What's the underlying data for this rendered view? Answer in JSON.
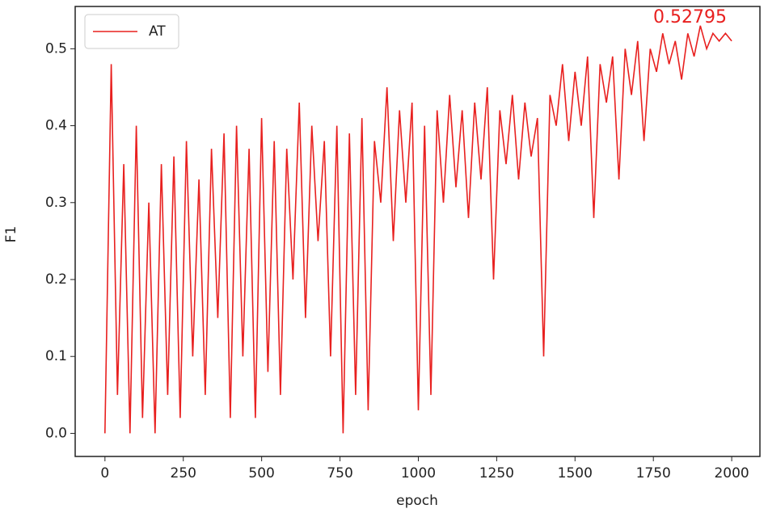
{
  "chart_data": {
    "type": "line",
    "xlabel": "epoch",
    "ylabel": "F1",
    "annotation": "0.52795",
    "x": [
      0,
      20,
      40,
      60,
      80,
      100,
      120,
      140,
      160,
      180,
      200,
      220,
      240,
      260,
      280,
      300,
      320,
      340,
      360,
      380,
      400,
      420,
      440,
      460,
      480,
      500,
      520,
      540,
      560,
      580,
      600,
      620,
      640,
      660,
      680,
      700,
      720,
      740,
      760,
      780,
      800,
      820,
      840,
      860,
      880,
      900,
      920,
      940,
      960,
      980,
      1000,
      1020,
      1040,
      1060,
      1080,
      1100,
      1120,
      1140,
      1160,
      1180,
      1200,
      1220,
      1240,
      1260,
      1280,
      1300,
      1320,
      1340,
      1360,
      1380,
      1400,
      1420,
      1440,
      1460,
      1480,
      1500,
      1520,
      1540,
      1560,
      1580,
      1600,
      1620,
      1640,
      1660,
      1680,
      1700,
      1720,
      1740,
      1760,
      1780,
      1800,
      1820,
      1840,
      1860,
      1880,
      1900,
      1920,
      1940,
      1960,
      1980,
      2000
    ],
    "series": [
      {
        "name": "AT",
        "color": "#e8201f",
        "values": [
          0.0,
          0.48,
          0.05,
          0.35,
          0.0,
          0.4,
          0.02,
          0.3,
          0.0,
          0.35,
          0.05,
          0.36,
          0.02,
          0.38,
          0.1,
          0.33,
          0.05,
          0.37,
          0.15,
          0.39,
          0.02,
          0.4,
          0.1,
          0.37,
          0.02,
          0.41,
          0.08,
          0.38,
          0.05,
          0.37,
          0.2,
          0.43,
          0.15,
          0.4,
          0.25,
          0.38,
          0.1,
          0.4,
          0.0,
          0.39,
          0.05,
          0.41,
          0.03,
          0.38,
          0.3,
          0.45,
          0.25,
          0.42,
          0.3,
          0.43,
          0.03,
          0.4,
          0.05,
          0.42,
          0.3,
          0.44,
          0.32,
          0.42,
          0.28,
          0.43,
          0.33,
          0.45,
          0.2,
          0.42,
          0.35,
          0.44,
          0.33,
          0.43,
          0.36,
          0.41,
          0.1,
          0.44,
          0.4,
          0.48,
          0.38,
          0.47,
          0.4,
          0.49,
          0.28,
          0.48,
          0.43,
          0.49,
          0.33,
          0.5,
          0.44,
          0.51,
          0.38,
          0.5,
          0.47,
          0.52,
          0.48,
          0.51,
          0.46,
          0.52,
          0.49,
          0.53,
          0.5,
          0.52,
          0.51,
          0.52,
          0.51
        ]
      }
    ],
    "xlim": [
      -95,
      2090
    ],
    "ylim": [
      -0.03,
      0.555
    ],
    "xticks": [
      0,
      250,
      500,
      750,
      1000,
      1250,
      1500,
      1750,
      2000
    ],
    "yticks": [
      {
        "value": 0,
        "label": "0.0"
      },
      0.1,
      0.2,
      0.3,
      0.4,
      0.5
    ],
    "legend": "upper left"
  }
}
